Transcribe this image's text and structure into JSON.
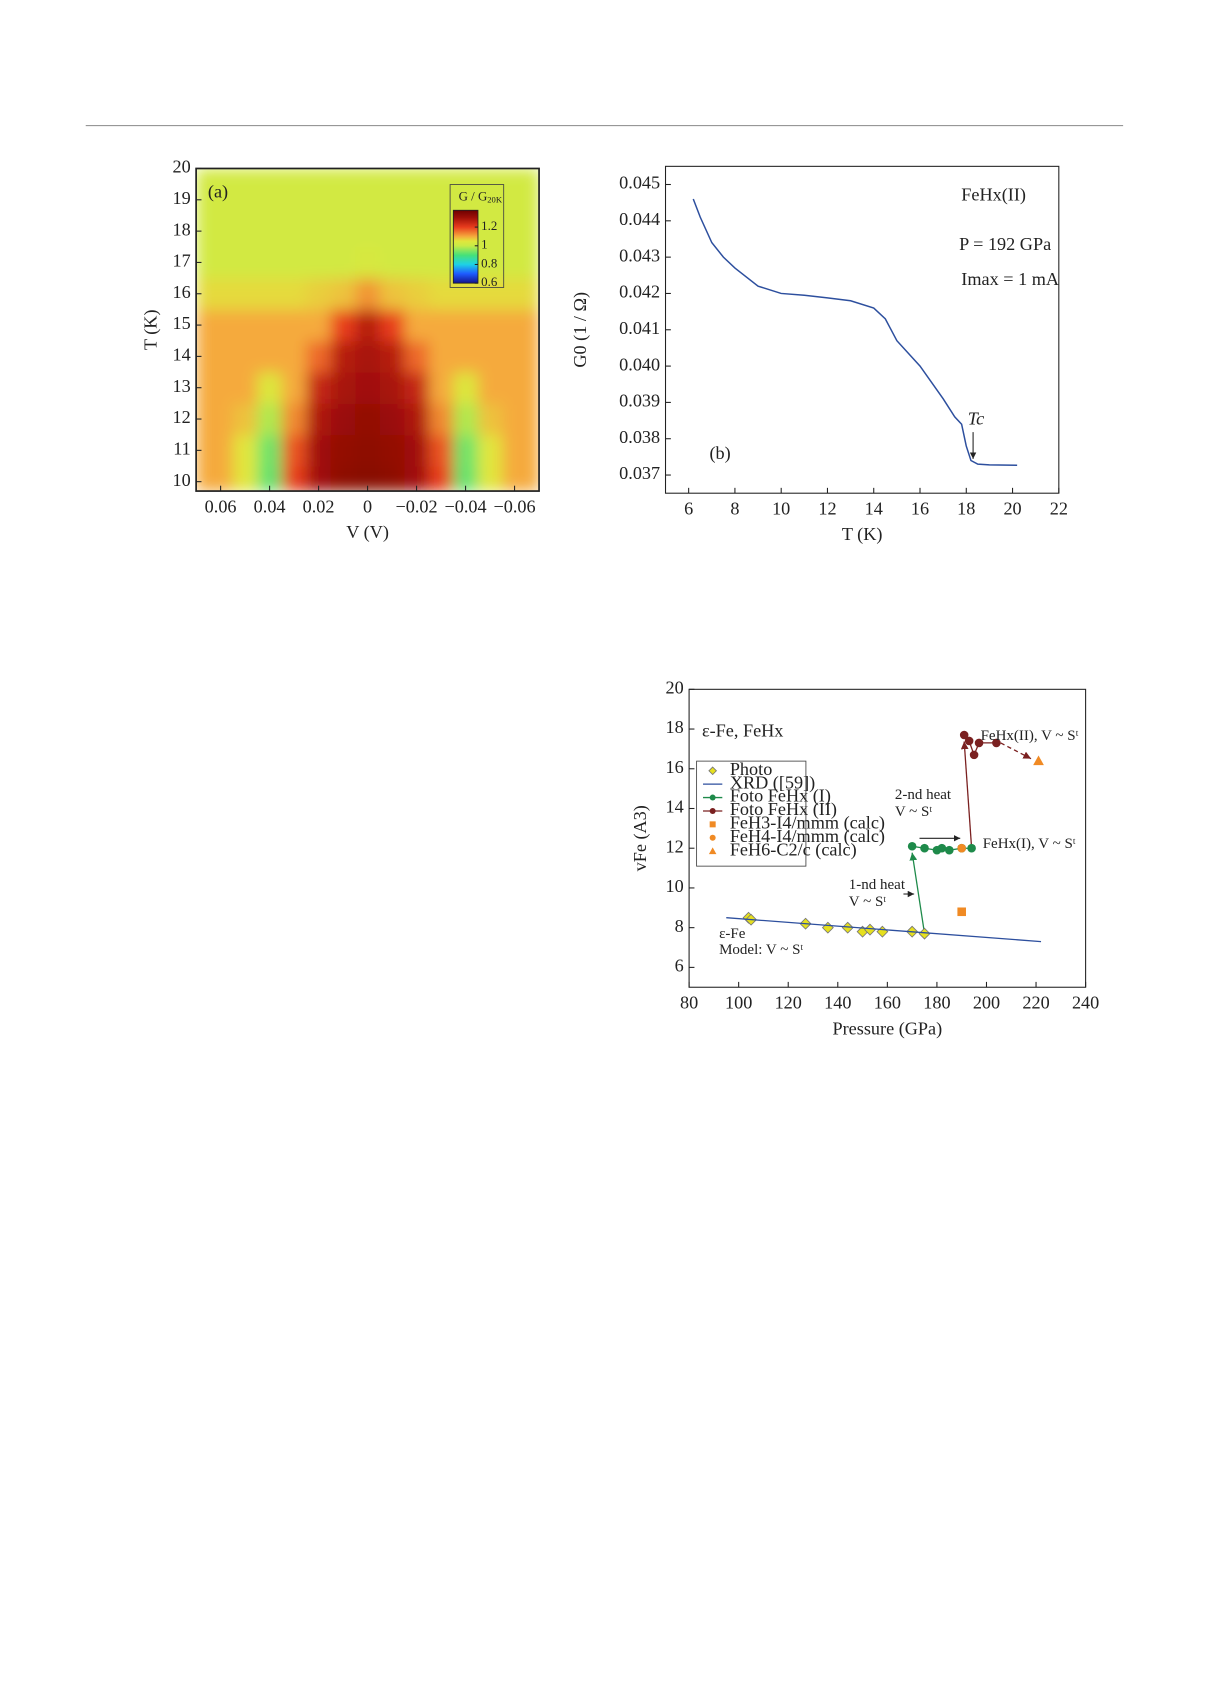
{
  "chart_data": [
    {
      "type": "heatmap",
      "panel_label": "(a)",
      "x_label": "V (V)",
      "y_label": "T (K)",
      "x": [
        0.06,
        0.05,
        0.04,
        0.03,
        0.02,
        0.01,
        0,
        -0.01,
        -0.02,
        -0.03,
        -0.04,
        -0.05,
        -0.06
      ],
      "y": [
        10,
        11,
        12,
        13,
        14,
        15,
        16,
        17,
        18,
        19,
        20
      ],
      "z": [
        [
          1.1,
          1.05,
          0.92,
          1.2,
          1.3,
          1.33,
          1.34,
          1.33,
          1.3,
          1.2,
          0.92,
          1.05,
          1.1
        ],
        [
          1.1,
          1.05,
          0.93,
          1.18,
          1.3,
          1.32,
          1.33,
          1.32,
          1.3,
          1.18,
          0.93,
          1.05,
          1.1
        ],
        [
          1.1,
          1.08,
          0.98,
          1.13,
          1.28,
          1.31,
          1.32,
          1.31,
          1.28,
          1.13,
          0.98,
          1.08,
          1.1
        ],
        [
          1.1,
          1.1,
          1.04,
          1.1,
          1.25,
          1.29,
          1.3,
          1.29,
          1.25,
          1.1,
          1.04,
          1.1,
          1.1
        ],
        [
          1.1,
          1.1,
          1.1,
          1.1,
          1.16,
          1.27,
          1.29,
          1.27,
          1.16,
          1.1,
          1.1,
          1.1,
          1.1
        ],
        [
          1.1,
          1.1,
          1.1,
          1.1,
          1.1,
          1.2,
          1.27,
          1.2,
          1.1,
          1.1,
          1.1,
          1.1,
          1.1
        ],
        [
          1.06,
          1.06,
          1.06,
          1.06,
          1.07,
          1.08,
          1.12,
          1.08,
          1.07,
          1.06,
          1.06,
          1.06,
          1.06
        ],
        [
          1.02,
          1.02,
          1.02,
          1.02,
          1.02,
          1.02,
          1.03,
          1.02,
          1.02,
          1.02,
          1.02,
          1.02,
          1.02
        ],
        [
          1.02,
          1.02,
          1.02,
          1.02,
          1.02,
          1.02,
          1.02,
          1.02,
          1.02,
          1.02,
          1.02,
          1.02,
          1.02
        ],
        [
          1.02,
          1.02,
          1.02,
          1.02,
          1.02,
          1.02,
          1.02,
          1.02,
          1.02,
          1.02,
          1.02,
          1.02,
          1.02
        ],
        [
          1.02,
          1.02,
          1.02,
          1.02,
          1.02,
          1.02,
          1.02,
          1.02,
          1.02,
          1.02,
          1.02,
          1.02,
          1.02
        ]
      ],
      "xlim": [
        0.07,
        -0.07
      ],
      "ylim": [
        9.7,
        20
      ],
      "xticks": [
        0.06,
        0.04,
        0.02,
        0,
        {
          "value": -0.02,
          "label": "−0.02"
        },
        {
          "value": -0.04,
          "label": "−0.04"
        },
        {
          "value": -0.06,
          "label": "−0.06"
        }
      ],
      "yticks": [
        10,
        11,
        12,
        13,
        14,
        15,
        16,
        17,
        18,
        19,
        20
      ],
      "colorbar": {
        "title": "G / G",
        "title_sub": "20K",
        "lim": [
          0.6,
          1.38
        ],
        "ticks": [
          0.6,
          0.8,
          1,
          1.2
        ]
      }
    },
    {
      "type": "line",
      "panel_label": "(b)",
      "x_label": "T (K)",
      "y_label": "G0 (1 / Ω)",
      "color": "#2d4f9e",
      "x": [
        6.2,
        6.5,
        7,
        7.5,
        8,
        9,
        10,
        11,
        12,
        13,
        14,
        14.5,
        15,
        16,
        17,
        17.5,
        17.8,
        18,
        18.2,
        18.5,
        19,
        20.2
      ],
      "values": [
        0.0446,
        0.0441,
        0.0434,
        0.043,
        0.0427,
        0.0422,
        0.042,
        0.04195,
        0.04188,
        0.0418,
        0.0416,
        0.0413,
        0.0407,
        0.04,
        0.0391,
        0.0386,
        0.0384,
        0.0378,
        0.0374,
        0.0373,
        0.03728,
        0.03727
      ],
      "xlim": [
        5,
        22
      ],
      "ylim": [
        0.0365,
        0.0455
      ],
      "xticks": [
        6,
        8,
        10,
        12,
        14,
        16,
        18,
        20,
        22
      ],
      "yticks": [
        0.037,
        0.038,
        0.039,
        {
          "value": 0.04,
          "label": "0.040"
        },
        0.041,
        0.042,
        0.043,
        0.044,
        0.045
      ],
      "annotations": [
        "FeHx(II)",
        "P = 192 GPa",
        "Imax = 1 mA",
        "Tc"
      ]
    },
    {
      "type": "scatter",
      "title": "ε-Fe, FeHx",
      "x_label": "Pressure (GPa)",
      "y_label": "vFe (A3)",
      "xlim": [
        80,
        240
      ],
      "ylim": [
        5,
        20
      ],
      "xticks": [
        80,
        100,
        120,
        140,
        160,
        180,
        200,
        220,
        240
      ],
      "yticks": [
        6,
        8,
        10,
        12,
        14,
        16,
        18,
        20
      ],
      "series": [
        {
          "name": "Photo",
          "color": "#e6e01e",
          "marker": "diamond",
          "x": [
            104,
            105,
            127,
            136,
            144,
            150,
            153,
            158,
            170,
            175
          ],
          "values": [
            8.5,
            8.4,
            8.2,
            8.0,
            8.0,
            7.8,
            7.9,
            7.8,
            7.8,
            7.7
          ]
        },
        {
          "name": "XRD ([59])",
          "color": "#2d4f9e",
          "marker": "line",
          "x": [
            95,
            222
          ],
          "values": [
            8.5,
            7.3
          ]
        },
        {
          "name": "Foto FeHx (I)",
          "color": "#1e8a4a",
          "marker": "circle",
          "x": [
            170,
            175,
            180,
            182,
            185,
            190,
            194
          ],
          "values": [
            12.1,
            12.0,
            11.9,
            12.0,
            11.9,
            12.0,
            12.0
          ]
        },
        {
          "name": "Foto FeHx (II)",
          "color": "#7a2020",
          "marker": "circle",
          "x": [
            191,
            193,
            195,
            197,
            204
          ],
          "values": [
            17.7,
            17.4,
            16.7,
            17.3,
            17.3
          ]
        },
        {
          "name": "FeH3-I4/mmm (calc)",
          "color": "#f08a24",
          "marker": "square",
          "x": [
            190
          ],
          "values": [
            8.8
          ]
        },
        {
          "name": "FeH4-I4/mmm (calc)",
          "color": "#f08a24",
          "marker": "circle",
          "x": [
            190
          ],
          "values": [
            12.0
          ]
        },
        {
          "name": "FeH6-C2/c (calc)",
          "color": "#f08a24",
          "marker": "triangle",
          "x": [
            221
          ],
          "values": [
            16.4
          ]
        }
      ],
      "annotations": [
        "1-nd heat",
        "V ~ Sᵗ",
        "2-nd heat",
        "V ~ Sᵗ",
        "FeHx(II), V ~ Sᵗ",
        "FeHx(I), V ~ Sᵗ",
        "ε-Fe",
        "Model: V ~ Sᵗ"
      ]
    }
  ]
}
